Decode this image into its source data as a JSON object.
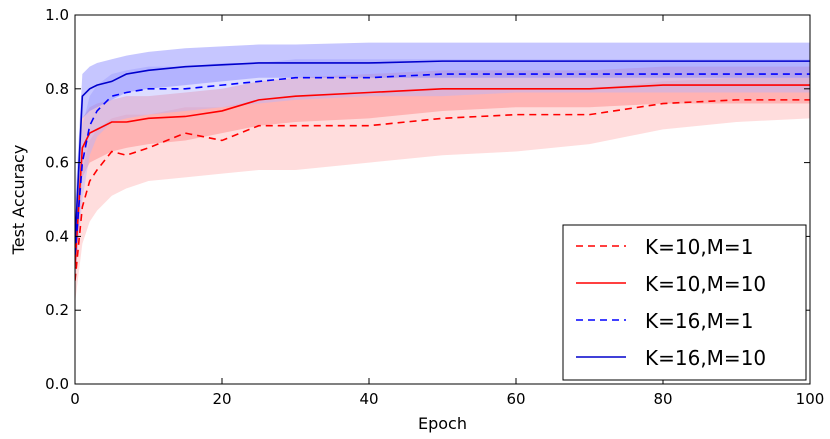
{
  "chart_data": {
    "type": "line",
    "title": "",
    "xlabel": "Epoch",
    "ylabel": "Test Accuracy",
    "xlim": [
      0,
      100
    ],
    "ylim": [
      0.0,
      1.0
    ],
    "xticks": [
      0,
      20,
      40,
      60,
      80,
      100
    ],
    "yticks": [
      0.0,
      0.2,
      0.4,
      0.6,
      0.8,
      1.0
    ],
    "xtick_labels": [
      "0",
      "20",
      "40",
      "60",
      "80",
      "100"
    ],
    "ytick_labels": [
      "0.0",
      "0.2",
      "0.4",
      "0.6",
      "0.8",
      "1.0"
    ],
    "grid": false,
    "legend_position": "lower-right",
    "x": [
      0,
      1,
      2,
      3,
      5,
      7,
      10,
      15,
      20,
      25,
      30,
      40,
      50,
      60,
      70,
      80,
      90,
      100
    ],
    "series": [
      {
        "name": "K=10,M=1",
        "color": "#ff0000",
        "linestyle": "dashed",
        "band_color": "#ffb3b3",
        "values": [
          0.28,
          0.48,
          0.55,
          0.58,
          0.63,
          0.62,
          0.64,
          0.68,
          0.66,
          0.7,
          0.7,
          0.7,
          0.72,
          0.73,
          0.73,
          0.76,
          0.77,
          0.77
        ],
        "band_lower": [
          0.22,
          0.38,
          0.44,
          0.47,
          0.51,
          0.53,
          0.55,
          0.56,
          0.57,
          0.58,
          0.58,
          0.6,
          0.62,
          0.63,
          0.65,
          0.69,
          0.71,
          0.72
        ],
        "band_upper": [
          0.36,
          0.58,
          0.66,
          0.69,
          0.72,
          0.73,
          0.73,
          0.75,
          0.75,
          0.77,
          0.78,
          0.79,
          0.8,
          0.8,
          0.8,
          0.82,
          0.83,
          0.83
        ]
      },
      {
        "name": "K=10,M=10",
        "color": "#ff0000",
        "linestyle": "solid",
        "band_color": "#ff8080",
        "values": [
          0.32,
          0.64,
          0.68,
          0.69,
          0.71,
          0.71,
          0.72,
          0.725,
          0.74,
          0.77,
          0.78,
          0.79,
          0.8,
          0.8,
          0.8,
          0.81,
          0.81,
          0.81
        ],
        "band_lower": [
          0.26,
          0.56,
          0.6,
          0.61,
          0.63,
          0.64,
          0.65,
          0.66,
          0.68,
          0.7,
          0.71,
          0.72,
          0.74,
          0.75,
          0.75,
          0.76,
          0.76,
          0.76
        ],
        "band_upper": [
          0.4,
          0.72,
          0.75,
          0.76,
          0.77,
          0.78,
          0.78,
          0.79,
          0.8,
          0.82,
          0.83,
          0.84,
          0.85,
          0.85,
          0.85,
          0.86,
          0.86,
          0.86
        ]
      },
      {
        "name": "K=16,M=1",
        "color": "#0000ff",
        "linestyle": "dashed",
        "band_color": "#b3b3ff",
        "values": [
          0.35,
          0.6,
          0.7,
          0.74,
          0.78,
          0.79,
          0.8,
          0.8,
          0.81,
          0.82,
          0.83,
          0.83,
          0.84,
          0.84,
          0.84,
          0.84,
          0.84,
          0.84
        ],
        "band_lower": [
          0.28,
          0.5,
          0.62,
          0.67,
          0.71,
          0.72,
          0.73,
          0.74,
          0.75,
          0.76,
          0.77,
          0.78,
          0.78,
          0.79,
          0.79,
          0.79,
          0.79,
          0.79
        ],
        "band_upper": [
          0.45,
          0.7,
          0.78,
          0.81,
          0.84,
          0.85,
          0.86,
          0.86,
          0.87,
          0.87,
          0.88,
          0.88,
          0.88,
          0.88,
          0.88,
          0.88,
          0.88,
          0.88
        ]
      },
      {
        "name": "K=16,M=10",
        "color": "#0000cc",
        "linestyle": "solid",
        "band_color": "#8080ff",
        "values": [
          0.38,
          0.78,
          0.8,
          0.81,
          0.82,
          0.84,
          0.85,
          0.86,
          0.865,
          0.87,
          0.87,
          0.87,
          0.875,
          0.875,
          0.875,
          0.875,
          0.875,
          0.875
        ],
        "band_lower": [
          0.3,
          0.72,
          0.74,
          0.75,
          0.77,
          0.79,
          0.8,
          0.81,
          0.82,
          0.83,
          0.83,
          0.83,
          0.83,
          0.83,
          0.83,
          0.83,
          0.83,
          0.83
        ],
        "band_upper": [
          0.48,
          0.84,
          0.86,
          0.87,
          0.88,
          0.89,
          0.9,
          0.91,
          0.915,
          0.92,
          0.92,
          0.925,
          0.925,
          0.925,
          0.925,
          0.925,
          0.925,
          0.925
        ]
      }
    ]
  }
}
